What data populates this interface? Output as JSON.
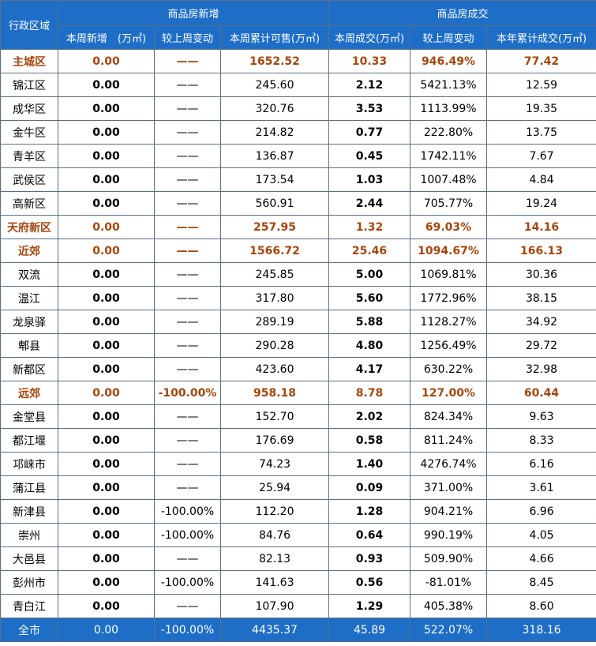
{
  "header": {
    "region": "行政区域",
    "group_new": "商品房新增",
    "group_deal": "商品房成交",
    "columns": [
      "本周新增　(万㎡)",
      "较上周变动",
      "本周累计可售(万㎡)",
      "本周成交(万㎡)",
      "较上周变动",
      "本年累计成交(万㎡)"
    ]
  },
  "rows": [
    {
      "name": "主城区",
      "new": "0.00",
      "new_chg": "——",
      "avail": "1652.52",
      "deal": "10.33",
      "deal_chg": "946.49%",
      "ytd": "77.42",
      "highlight": true
    },
    {
      "name": "锦江区",
      "new": "0.00",
      "new_chg": "——",
      "avail": "245.60",
      "deal": "2.12",
      "deal_chg": "5421.13%",
      "ytd": "12.59",
      "highlight": false
    },
    {
      "name": "成华区",
      "new": "0.00",
      "new_chg": "——",
      "avail": "320.76",
      "deal": "3.53",
      "deal_chg": "1113.99%",
      "ytd": "19.35",
      "highlight": false
    },
    {
      "name": "金牛区",
      "new": "0.00",
      "new_chg": "——",
      "avail": "214.82",
      "deal": "0.77",
      "deal_chg": "222.80%",
      "ytd": "13.75",
      "highlight": false
    },
    {
      "name": "青羊区",
      "new": "0.00",
      "new_chg": "——",
      "avail": "136.87",
      "deal": "0.45",
      "deal_chg": "1742.11%",
      "ytd": "7.67",
      "highlight": false
    },
    {
      "name": "武侯区",
      "new": "0.00",
      "new_chg": "——",
      "avail": "173.54",
      "deal": "1.03",
      "deal_chg": "1007.48%",
      "ytd": "4.84",
      "highlight": false
    },
    {
      "name": "高新区",
      "new": "0.00",
      "new_chg": "——",
      "avail": "560.91",
      "deal": "2.44",
      "deal_chg": "705.77%",
      "ytd": "19.24",
      "highlight": false
    },
    {
      "name": "天府新区",
      "new": "0.00",
      "new_chg": "——",
      "avail": "257.95",
      "deal": "1.32",
      "deal_chg": "69.03%",
      "ytd": "14.16",
      "highlight": true
    },
    {
      "name": "近郊",
      "new": "0.00",
      "new_chg": "——",
      "avail": "1566.72",
      "deal": "25.46",
      "deal_chg": "1094.67%",
      "ytd": "166.13",
      "highlight": true
    },
    {
      "name": "双流",
      "new": "0.00",
      "new_chg": "——",
      "avail": "245.85",
      "deal": "5.00",
      "deal_chg": "1069.81%",
      "ytd": "30.36",
      "highlight": false
    },
    {
      "name": "温江",
      "new": "0.00",
      "new_chg": "——",
      "avail": "317.80",
      "deal": "5.60",
      "deal_chg": "1772.96%",
      "ytd": "38.15",
      "highlight": false
    },
    {
      "name": "龙泉驿",
      "new": "0.00",
      "new_chg": "——",
      "avail": "289.19",
      "deal": "5.88",
      "deal_chg": "1128.27%",
      "ytd": "34.92",
      "highlight": false
    },
    {
      "name": "郫县",
      "new": "0.00",
      "new_chg": "——",
      "avail": "290.28",
      "deal": "4.80",
      "deal_chg": "1256.49%",
      "ytd": "29.72",
      "highlight": false
    },
    {
      "name": "新都区",
      "new": "0.00",
      "new_chg": "——",
      "avail": "423.60",
      "deal": "4.17",
      "deal_chg": "630.22%",
      "ytd": "32.98",
      "highlight": false
    },
    {
      "name": "远郊",
      "new": "0.00",
      "new_chg": "-100.00%",
      "avail": "958.18",
      "deal": "8.78",
      "deal_chg": "127.00%",
      "ytd": "60.44",
      "highlight": true
    },
    {
      "name": "金堂县",
      "new": "0.00",
      "new_chg": "——",
      "avail": "152.70",
      "deal": "2.02",
      "deal_chg": "824.34%",
      "ytd": "9.63",
      "highlight": false
    },
    {
      "name": "都江堰",
      "new": "0.00",
      "new_chg": "——",
      "avail": "176.69",
      "deal": "0.58",
      "deal_chg": "811.24%",
      "ytd": "8.33",
      "highlight": false
    },
    {
      "name": "邛崃市",
      "new": "0.00",
      "new_chg": "——",
      "avail": "74.23",
      "deal": "1.40",
      "deal_chg": "4276.74%",
      "ytd": "6.16",
      "highlight": false
    },
    {
      "name": "蒲江县",
      "new": "0.00",
      "new_chg": "——",
      "avail": "25.94",
      "deal": "0.09",
      "deal_chg": "371.00%",
      "ytd": "3.61",
      "highlight": false
    },
    {
      "name": "新津县",
      "new": "0.00",
      "new_chg": "-100.00%",
      "avail": "112.20",
      "deal": "1.28",
      "deal_chg": "904.21%",
      "ytd": "6.96",
      "highlight": false
    },
    {
      "name": "崇州",
      "new": "0.00",
      "new_chg": "-100.00%",
      "avail": "84.76",
      "deal": "0.64",
      "deal_chg": "990.19%",
      "ytd": "4.05",
      "highlight": false
    },
    {
      "name": "大邑县",
      "new": "0.00",
      "new_chg": "——",
      "avail": "82.13",
      "deal": "0.93",
      "deal_chg": "509.90%",
      "ytd": "4.66",
      "highlight": false
    },
    {
      "name": "彭州市",
      "new": "0.00",
      "new_chg": "-100.00%",
      "avail": "141.63",
      "deal": "0.56",
      "deal_chg": "-81.01%",
      "ytd": "8.45",
      "highlight": false
    },
    {
      "name": "青白江",
      "new": "0.00",
      "new_chg": "——",
      "avail": "107.90",
      "deal": "1.29",
      "deal_chg": "405.38%",
      "ytd": "8.60",
      "highlight": false
    }
  ],
  "total": {
    "name": "全市",
    "new": "0.00",
    "new_chg": "-100.00%",
    "avail": "4435.37",
    "deal": "45.89",
    "deal_chg": "522.07%",
    "ytd": "318.16"
  }
}
